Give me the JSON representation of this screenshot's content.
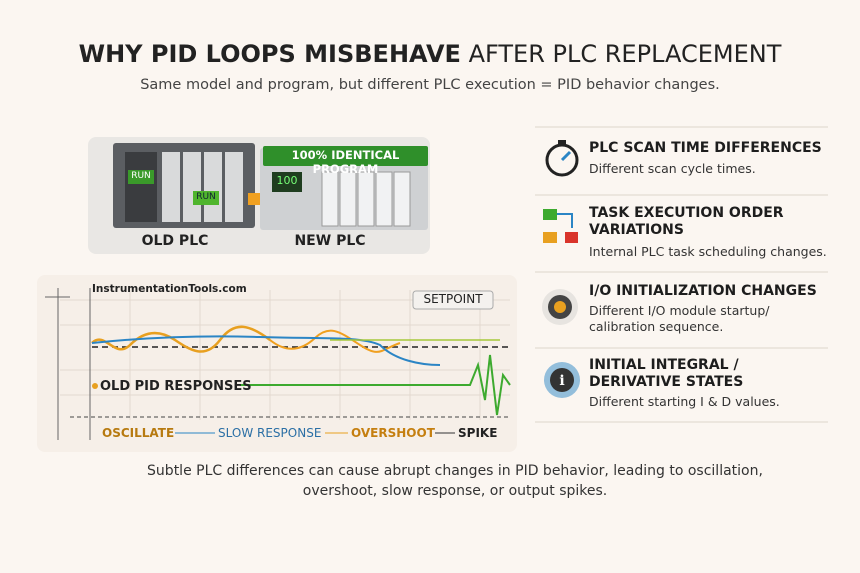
{
  "header": {
    "title": [
      "WHY PID LOOPS MISBEHAVE",
      "AFTER PLC REPLACEMENT"
    ],
    "subtitle": "Same model and program, but different PLC execution = PID behavior changes."
  },
  "hardware": {
    "banner": "100% IDENTICAL PROGRAM",
    "old_plc": "OLD PLC",
    "new_plc": "NEW PLC",
    "old_run": "RUN",
    "old_run_button": "RUN",
    "new_display": "100"
  },
  "graph": {
    "source": "InstrumentationTools.com",
    "setpoint": "SETPOINT",
    "responses": "OLD PID RESPONSES",
    "legend": [
      "OSCILLATE",
      "SLOW RESPONSE",
      "OVERSHOOT",
      "SPIKE"
    ]
  },
  "causes": [
    {
      "title": "PLC SCAN TIME DIFFERENCES",
      "description": "Different scan cycle times."
    },
    {
      "title": "TASK EXECUTION ORDER VARIATIONS",
      "description": "Internal PLC task scheduling changes."
    },
    {
      "title": "I/O INITIALIZATION CHANGES",
      "description": "Different I/O module startup/ calibration sequence."
    },
    {
      "title": "INITIAL INTEGRAL / DERIVATIVE STATES",
      "description": "Different starting I & D values."
    }
  ],
  "footer": "Subtle PLC differences can cause abrupt changes in PID behavior, leading to oscillation, overshoot, slow response, or output spikes."
}
